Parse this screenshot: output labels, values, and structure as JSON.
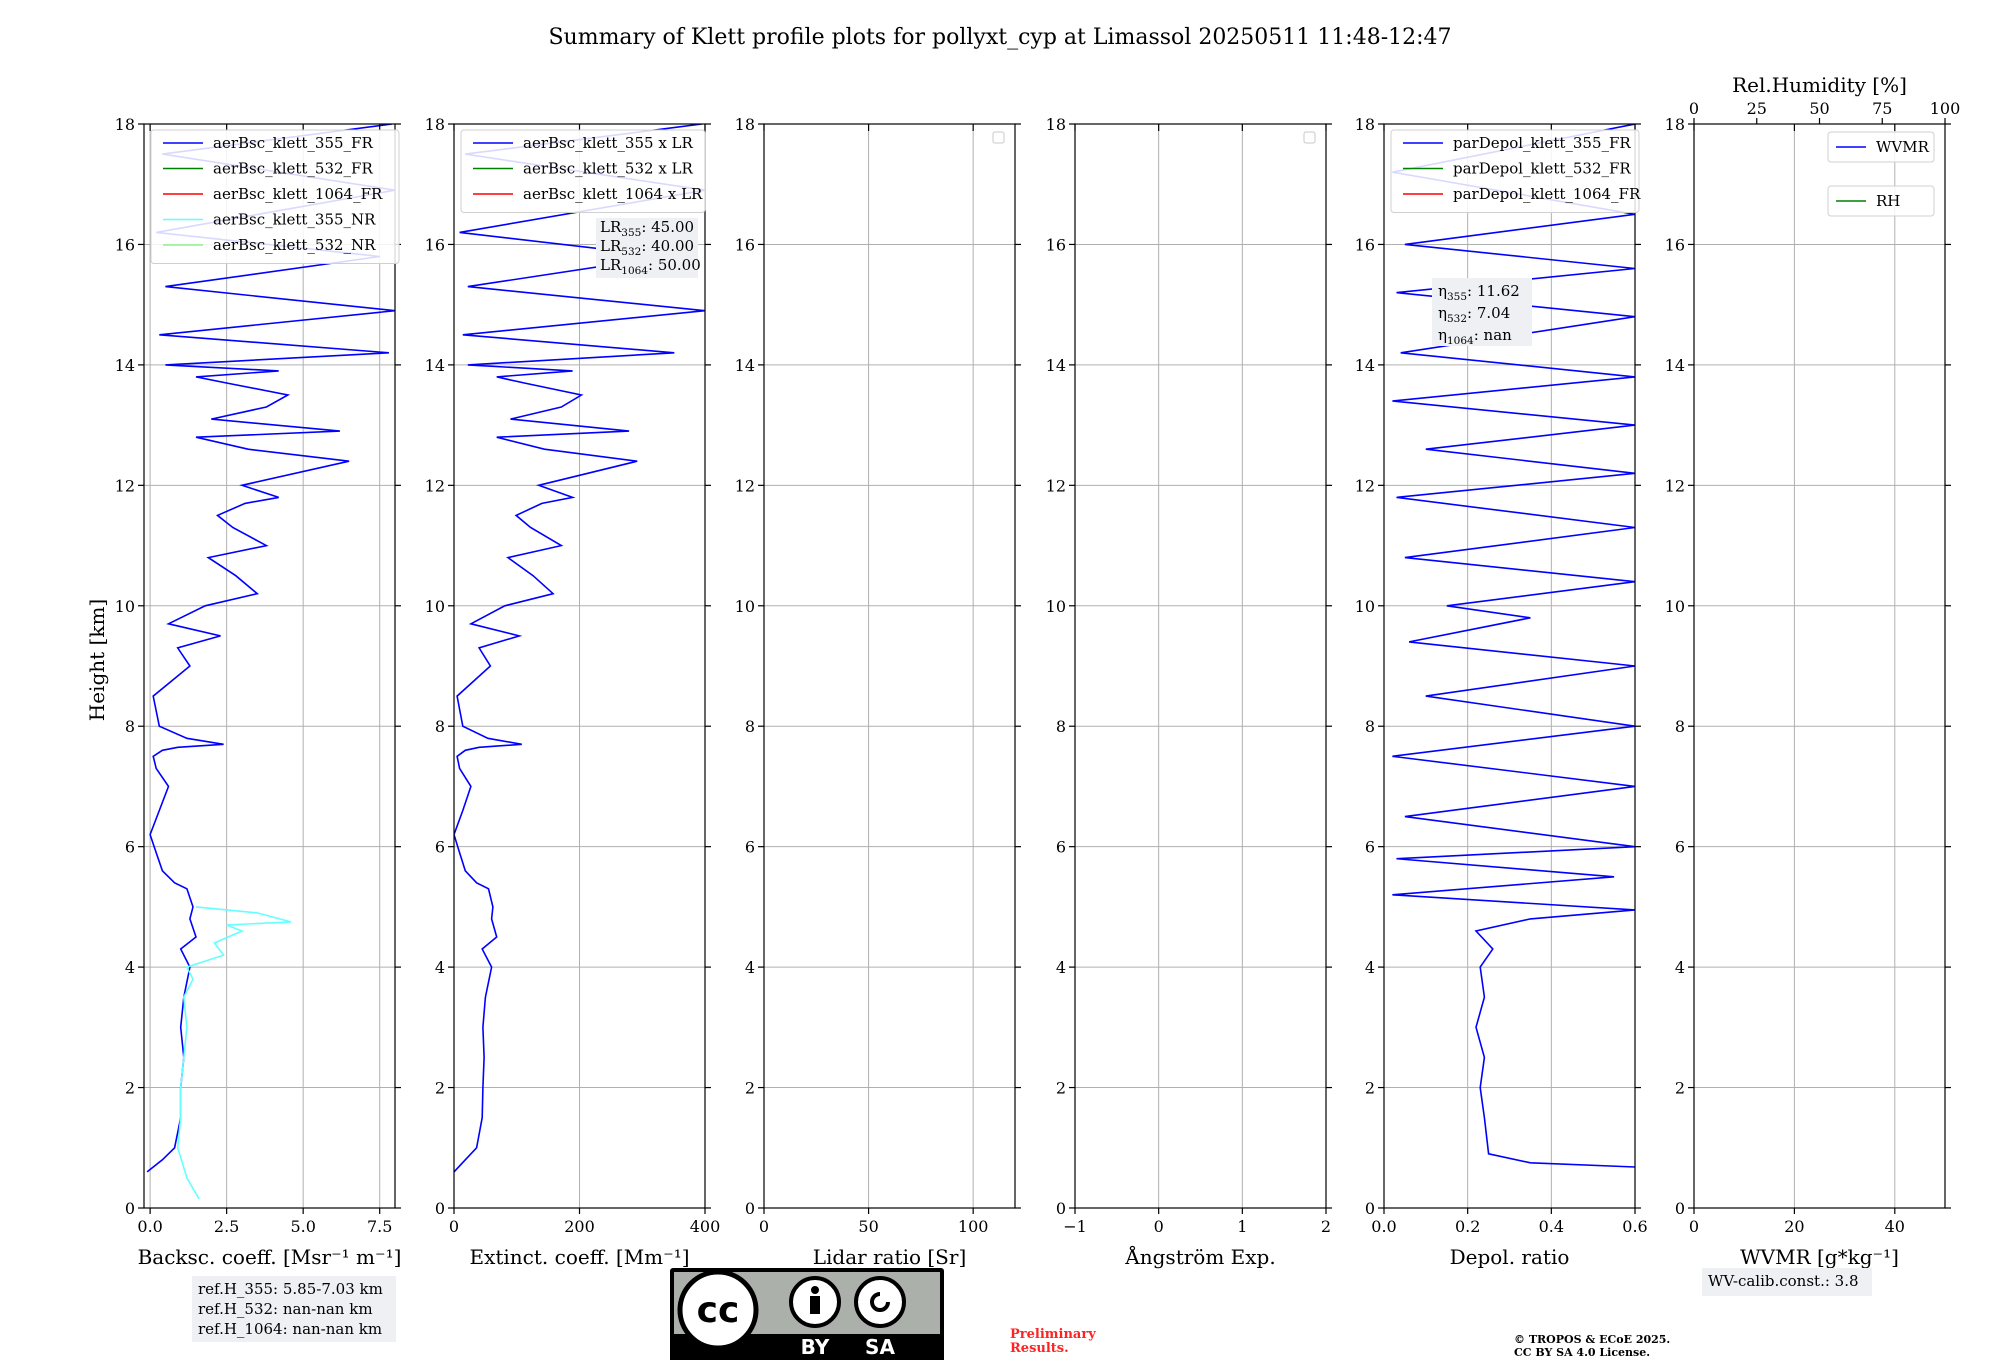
{
  "chart_data": {
    "type": "line",
    "title": "Summary of Klett profile plots for pollyxt_cyp at Limassol 20250511 11:48-12:47",
    "ylabel": "Height [km]",
    "ylim": [
      0,
      18
    ],
    "yticks": [
      0,
      2,
      4,
      6,
      8,
      10,
      12,
      14,
      16,
      18
    ],
    "panels": [
      {
        "id": "backscatter",
        "xlabel": "Backsc. coeff. [Msr⁻¹ m⁻¹]",
        "xlim": [
          -0.2,
          8.0
        ],
        "xticks": [
          0,
          2.5,
          5,
          7.5
        ],
        "xticklabels": [
          "0.0",
          "2.5",
          "5.0",
          "7.5"
        ],
        "legend": [
          "aerBsc_klett_355_FR",
          "aerBsc_klett_532_FR",
          "aerBsc_klett_1064_FR",
          "aerBsc_klett_355_NR",
          "aerBsc_klett_532_NR"
        ],
        "series": [
          {
            "name": "aerBsc_klett_355_FR",
            "color": "#0000ff",
            "x": [
              -0.1,
              0.4,
              0.8,
              1.0,
              1.0,
              1.1,
              1.0,
              1.1,
              1.3,
              1.0,
              1.5,
              1.3,
              1.4,
              1.2,
              0.8,
              0.4,
              0.2,
              0.0,
              0.3,
              0.6,
              0.2,
              0.1,
              0.4,
              0.9,
              2.4,
              1.2,
              0.3,
              0.1,
              1.3,
              0.9,
              2.3,
              0.6,
              1.8,
              3.5,
              2.8,
              1.9,
              3.8,
              2.7,
              2.2,
              3.1,
              4.2,
              3.0,
              6.5,
              3.2,
              1.5,
              6.2,
              2.0,
              3.8,
              4.5,
              2.5,
              1.5,
              4.2,
              0.5,
              7.8,
              0.3,
              8.0,
              0.5,
              7.5,
              0.2,
              8.0,
              0.4,
              7.9
            ],
            "y": [
              0.6,
              0.8,
              1.0,
              1.5,
              2.0,
              2.5,
              3.0,
              3.5,
              4.0,
              4.3,
              4.5,
              4.8,
              5.0,
              5.3,
              5.4,
              5.6,
              5.9,
              6.2,
              6.6,
              7.0,
              7.3,
              7.5,
              7.6,
              7.65,
              7.7,
              7.8,
              8.0,
              8.5,
              9.0,
              9.3,
              9.5,
              9.7,
              10.0,
              10.2,
              10.5,
              10.8,
              11.0,
              11.3,
              11.5,
              11.7,
              11.8,
              12.0,
              12.4,
              12.6,
              12.8,
              12.9,
              13.1,
              13.3,
              13.5,
              13.7,
              13.8,
              13.9,
              14.0,
              14.2,
              14.5,
              14.9,
              15.3,
              15.8,
              16.2,
              16.9,
              17.5,
              18.0
            ]
          },
          {
            "name": "aerBsc_klett_355_NR",
            "color": "#66ffff",
            "x": [
              1.6,
              1.2,
              0.9,
              1.0,
              1.0,
              1.1,
              1.2,
              1.1,
              1.4,
              1.2,
              2.4,
              2.1,
              3.0,
              2.5,
              4.6,
              3.5,
              1.5
            ],
            "y": [
              0.15,
              0.5,
              1.0,
              1.5,
              2.0,
              2.5,
              3.0,
              3.5,
              3.8,
              4.0,
              4.2,
              4.4,
              4.6,
              4.7,
              4.75,
              4.9,
              5.0
            ]
          }
        ],
        "notes": [
          "ref.H_355: 5.85-7.03 km",
          "ref.H_532: nan-nan km",
          "ref.H_1064: nan-nan km"
        ]
      },
      {
        "id": "extinction",
        "xlabel": "Extinct. coeff. [Mm⁻¹]",
        "xlim": [
          0,
          400
        ],
        "xticks": [
          0,
          200,
          400
        ],
        "xticklabels": [
          "0",
          "200",
          "400"
        ],
        "legend": [
          "aerBsc_klett_355 x LR",
          "aerBsc_klett_532 x LR",
          "aerBsc_klett_1064 x LR"
        ],
        "lr_labels": [
          "LR355: 45.00",
          "LR532: 40.00",
          "LR1064: 50.00"
        ],
        "series": [
          {
            "name": "aerBsc_klett_355 x LR",
            "color": "#0000ff",
            "x": [
              0,
              18,
              36,
              45,
              46,
              48,
              46,
              50,
              60,
              45,
              68,
              60,
              62,
              55,
              36,
              18,
              9,
              0,
              14,
              27,
              9,
              5,
              18,
              40,
              108,
              54,
              14,
              5,
              58,
              40,
              104,
              27,
              81,
              158,
              126,
              86,
              171,
              122,
              99,
              140,
              189,
              135,
              292,
              144,
              68,
              279,
              90,
              171,
              203,
              112,
              68,
              189,
              22,
              351,
              14,
              400,
              22,
              338,
              9,
              400,
              18,
              395
            ],
            "y": [
              0.6,
              0.8,
              1.0,
              1.5,
              2.0,
              2.5,
              3.0,
              3.5,
              4.0,
              4.3,
              4.5,
              4.8,
              5.0,
              5.3,
              5.4,
              5.6,
              5.9,
              6.2,
              6.6,
              7.0,
              7.3,
              7.5,
              7.6,
              7.65,
              7.7,
              7.8,
              8.0,
              8.5,
              9.0,
              9.3,
              9.5,
              9.7,
              10.0,
              10.2,
              10.5,
              10.8,
              11.0,
              11.3,
              11.5,
              11.7,
              11.8,
              12.0,
              12.4,
              12.6,
              12.8,
              12.9,
              13.1,
              13.3,
              13.5,
              13.7,
              13.8,
              13.9,
              14.0,
              14.2,
              14.5,
              14.9,
              15.3,
              15.8,
              16.2,
              16.9,
              17.5,
              18.0
            ]
          }
        ]
      },
      {
        "id": "lidar_ratio",
        "xlabel": "Lidar ratio [Sr]",
        "xlim": [
          0,
          120
        ],
        "xticks": [
          0,
          50,
          100
        ],
        "xticklabels": [
          "0",
          "50",
          "100"
        ],
        "series": []
      },
      {
        "id": "angstrom",
        "xlabel": "Ångström Exp.",
        "xlim": [
          -1,
          2
        ],
        "xticks": [
          -1,
          0,
          1,
          2
        ],
        "xticklabels": [
          "−1",
          "0",
          "1",
          "2"
        ],
        "series": []
      },
      {
        "id": "depol",
        "xlabel": "Depol. ratio",
        "xlim": [
          0,
          0.6
        ],
        "xticks": [
          0,
          0.2,
          0.4,
          0.6
        ],
        "xticklabels": [
          "0.0",
          "0.2",
          "0.4",
          "0.6"
        ],
        "legend": [
          "parDepol_klett_355_FR",
          "parDepol_klett_532_FR",
          "parDepol_klett_1064_FR"
        ],
        "eta_labels": [
          "η355: 11.62",
          "η532: 7.04",
          "η1064: nan"
        ],
        "series": [
          {
            "name": "parDepol_klett_355_FR",
            "color": "#0000ff",
            "x": [
              0.6,
              0.35,
              0.25,
              0.24,
              0.23,
              0.24,
              0.22,
              0.24,
              0.23,
              0.26,
              0.22,
              0.35,
              0.6,
              0.02,
              0.55,
              0.03,
              0.6,
              0.05,
              0.6,
              0.02,
              0.6,
              0.1,
              0.6,
              0.06,
              0.35,
              0.15,
              0.6,
              0.05,
              0.6,
              0.03,
              0.6,
              0.1,
              0.6,
              0.02,
              0.6,
              0.04,
              0.6,
              0.03,
              0.6,
              0.05,
              0.6,
              0.02,
              0.6
            ],
            "y": [
              0.68,
              0.75,
              0.9,
              1.5,
              2.0,
              2.5,
              3.0,
              3.5,
              4.0,
              4.3,
              4.6,
              4.8,
              4.95,
              5.2,
              5.5,
              5.8,
              6.0,
              6.5,
              7.0,
              7.5,
              8.0,
              8.5,
              9.0,
              9.4,
              9.8,
              10.0,
              10.4,
              10.8,
              11.3,
              11.8,
              12.2,
              12.6,
              13.0,
              13.4,
              13.8,
              14.2,
              14.8,
              15.2,
              15.6,
              16.0,
              16.5,
              17.2,
              18.0
            ]
          }
        ]
      },
      {
        "id": "wvmr",
        "xlabel": "WVMR [g*kg⁻¹]",
        "xlim": [
          0,
          50
        ],
        "xticks": [
          0,
          20,
          40
        ],
        "xticklabels": [
          "0",
          "20",
          "40"
        ],
        "top_axis_label": "Rel.Humidity [%]",
        "top_xlim": [
          0,
          100
        ],
        "top_xticks": [
          0,
          25,
          50,
          75,
          100
        ],
        "legend": [
          "WVMR",
          "RH"
        ],
        "note": "WV-calib.const.: 3.8",
        "series": []
      }
    ]
  },
  "footer": {
    "license_badge": [
      "BY",
      "SA"
    ],
    "preliminary": [
      "Preliminary",
      "Results."
    ],
    "copyright": [
      "© TROPOS & ECoE 2025.",
      "CC BY SA 4.0 License."
    ]
  },
  "colors": {
    "fr355": "#0000ff",
    "fr532": "#008000",
    "fr1064": "#ff0000",
    "nr355": "#66ffff",
    "nr532": "#90ee90",
    "grid": "#b0b0b0"
  }
}
